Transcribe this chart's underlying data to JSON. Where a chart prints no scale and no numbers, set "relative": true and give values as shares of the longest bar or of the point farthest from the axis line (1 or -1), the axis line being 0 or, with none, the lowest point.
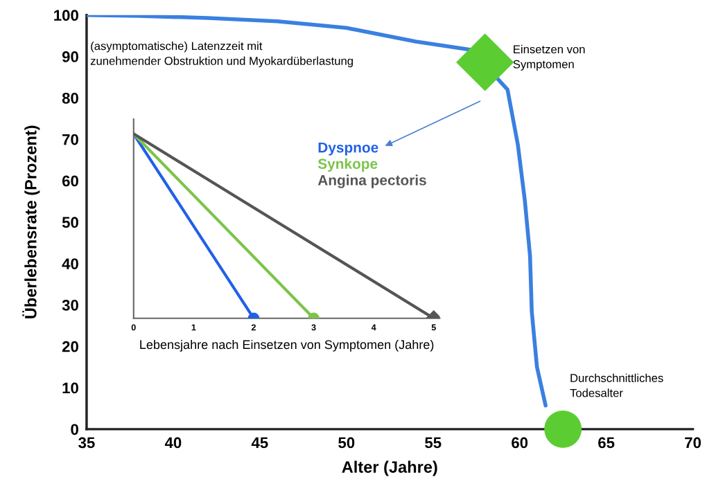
{
  "chart_data": [
    {
      "type": "line",
      "xlabel": "Alter (Jahre)",
      "ylabel": "Überlebensrate (Prozent)",
      "xlim": [
        35,
        70
      ],
      "ylim": [
        0,
        100
      ],
      "xticks": [
        35,
        40,
        45,
        50,
        55,
        60,
        65,
        70
      ],
      "yticks": [
        0,
        10,
        20,
        30,
        40,
        50,
        60,
        70,
        80,
        90,
        100
      ],
      "grid": false,
      "legend": false,
      "series": [
        {
          "type": "line",
          "color": "#3a80e0",
          "x": [
            35,
            38,
            42,
            46,
            50,
            54,
            57.2,
            59.3,
            59.9,
            60.3,
            60.6,
            60.7,
            61.0,
            61.5
          ],
          "values": [
            100,
            99.8,
            99.3,
            98.5,
            96.9,
            93.6,
            91.6,
            82,
            68.6,
            55.2,
            41.8,
            28.4,
            15,
            5.7
          ]
        },
        {
          "type": "scatter",
          "marker": "diamond",
          "color": "#5ccc33",
          "x": [
            58
          ],
          "values": [
            88.6
          ]
        },
        {
          "type": "scatter",
          "marker": "circle",
          "color": "#5ccc33",
          "x": [
            62.5
          ],
          "values": [
            0
          ]
        }
      ],
      "annotations": [
        "(asymptomatische) Latenzzeit mit\nzunehmender Obstruktion und Myokardüberlastung",
        "Einsetzen von\nSymptomen",
        "Durchschnittliches\nTodesalter"
      ]
    },
    {
      "type": "line",
      "relative": true,
      "xlabel": "Lebensjahre nach Einsetzen von Symptomen (Jahre)",
      "xlim": [
        0,
        5.1
      ],
      "xticks": [
        0,
        1,
        2,
        3,
        4,
        5
      ],
      "tick_labels": "x",
      "legend": "top right",
      "series": [
        {
          "name": "Dyspnoe",
          "color": "#2060e8",
          "marker": "circle",
          "x": [
            0,
            2
          ],
          "values": [
            1,
            0
          ]
        },
        {
          "name": "Synkope",
          "color": "#7cc44a",
          "marker": "circle",
          "x": [
            0,
            3
          ],
          "values": [
            1,
            0
          ]
        },
        {
          "name": "Angina pectoris",
          "color": "#555555",
          "marker": "diamond",
          "x": [
            0,
            5
          ],
          "values": [
            1,
            0
          ]
        }
      ]
    }
  ]
}
